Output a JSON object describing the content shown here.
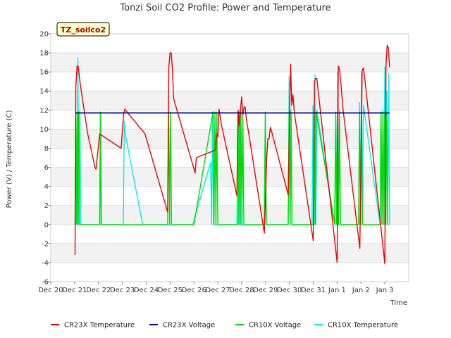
{
  "chart_data": {
    "type": "line",
    "title": "Tonzi Soil CO2 Profile: Power and Temperature",
    "xlabel": "Time",
    "ylabel": "Power (V) / Temperature (C)",
    "annotation": "TZ_soilco2",
    "xlim": [
      0,
      15
    ],
    "ylim": [
      -6,
      20
    ],
    "yticks": [
      -6,
      -4,
      -2,
      0,
      2,
      4,
      6,
      8,
      10,
      12,
      14,
      16,
      18,
      20
    ],
    "xticks": [
      {
        "value": 0,
        "label": "Dec 20"
      },
      {
        "value": 1,
        "label": "Dec 21"
      },
      {
        "value": 2,
        "label": "Dec 22"
      },
      {
        "value": 3,
        "label": "Dec 23"
      },
      {
        "value": 4,
        "label": "Dec 24"
      },
      {
        "value": 5,
        "label": "Dec 25"
      },
      {
        "value": 6,
        "label": "Dec 26"
      },
      {
        "value": 7,
        "label": "Dec 27"
      },
      {
        "value": 8,
        "label": "Dec 28"
      },
      {
        "value": 9,
        "label": "Dec 29"
      },
      {
        "value": 10,
        "label": "Dec 30"
      },
      {
        "value": 11,
        "label": "Dec 31"
      },
      {
        "value": 12,
        "label": "Jan 1"
      },
      {
        "value": 13,
        "label": "Jan 2"
      },
      {
        "value": 14,
        "label": "Jan 3"
      }
    ],
    "series": [
      {
        "name": "CR23X Temperature",
        "color": "#ee0000",
        "x": [
          1.02,
          1.05,
          1.1,
          1.15,
          1.25,
          1.55,
          1.85,
          1.9,
          2.05,
          2.95,
          3.05,
          3.1,
          3.95,
          4.9,
          4.95,
          5.0,
          5.05,
          5.1,
          5.15,
          6.05,
          6.1,
          6.4,
          6.9,
          6.95,
          7.0,
          7.05,
          7.15,
          7.8,
          7.85,
          7.9,
          7.95,
          8.0,
          8.05,
          8.1,
          8.15,
          8.2,
          8.3,
          8.95,
          9.05,
          9.1,
          9.15,
          9.2,
          9.25,
          9.95,
          10.05,
          10.1,
          10.15,
          10.2,
          10.25,
          11.0,
          11.05,
          11.1,
          11.15,
          12.0,
          12.05,
          12.1,
          12.15,
          12.25,
          12.95,
          13.05,
          13.1,
          13.15,
          14.0,
          14.05,
          14.1,
          14.15,
          14.2
        ],
        "values": [
          -3.2,
          14.5,
          16.6,
          16.6,
          14.5,
          9.5,
          6.0,
          5.8,
          9.5,
          8.0,
          11.5,
          12.1,
          9.5,
          1.3,
          16.5,
          18.0,
          18.0,
          16.2,
          13.2,
          5.4,
          7.0,
          7.3,
          7.8,
          9.5,
          9.2,
          12.1,
          10.5,
          3.0,
          12.0,
          10.3,
          12.0,
          13.4,
          11.5,
          12.3,
          12.3,
          11.0,
          9.5,
          -0.9,
          7.0,
          9.0,
          9.0,
          10.2,
          9.8,
          3.1,
          16.8,
          12.5,
          13.6,
          12.0,
          11.0,
          -1.7,
          15.0,
          15.3,
          15.3,
          -4.0,
          16.6,
          16.2,
          15.0,
          12.0,
          -2.5,
          16.2,
          16.4,
          15.5,
          -4.1,
          16.8,
          18.8,
          18.5,
          16.5
        ]
      },
      {
        "name": "CR23X Voltage",
        "color": "#0000aa",
        "x": [
          1.02,
          14.2
        ],
        "values": [
          11.7,
          11.7
        ]
      },
      {
        "name": "CR10X Voltage",
        "color": "#00dd00",
        "x": [
          1.02,
          1.05,
          1.08,
          1.11,
          1.14,
          1.17,
          1.2,
          1.23,
          2.05,
          2.08,
          2.11,
          2.14,
          3.04,
          3.07,
          3.9,
          4.9,
          4.94,
          4.98,
          5.02,
          5.06,
          5.1,
          6.0,
          6.8,
          6.84,
          6.88,
          6.92,
          6.96,
          7.0,
          7.04,
          7.85,
          7.89,
          7.93,
          7.97,
          8.01,
          8.05,
          8.09,
          8.95,
          8.99,
          9.03,
          9.95,
          9.99,
          10.03,
          10.07,
          10.11,
          11.0,
          11.04,
          11.08,
          11.12,
          11.9,
          11.94,
          11.98,
          12.02,
          12.06,
          12.1,
          12.14,
          12.9,
          12.94,
          12.98,
          13.02,
          13.06,
          13.8,
          13.84,
          13.88,
          13.92,
          13.96,
          14.0,
          14.04,
          14.08,
          14.12,
          14.16
        ],
        "values": [
          0,
          11.8,
          0,
          11.8,
          0,
          11.8,
          0,
          0,
          0,
          11.8,
          0,
          0,
          0,
          0,
          0,
          0,
          11.8,
          0,
          11.8,
          0,
          0,
          0,
          11.8,
          0,
          11.8,
          0,
          11.8,
          0,
          0,
          0,
          11.8,
          0,
          11.8,
          0,
          11.8,
          0,
          0,
          11.8,
          0,
          0,
          11.8,
          0,
          11.8,
          0,
          0,
          11.8,
          0,
          11.8,
          0,
          11.8,
          0,
          11.8,
          0,
          11.8,
          0,
          0,
          11.8,
          0,
          11.8,
          0,
          0,
          11.8,
          0,
          11.8,
          0,
          11.8,
          0,
          11.8,
          0,
          0
        ]
      },
      {
        "name": "CR10X Temperature",
        "color": "#00eeee",
        "x": [
          1.02,
          1.06,
          1.1,
          1.14,
          1.18,
          1.22,
          1.26,
          1.3,
          2.05,
          2.09,
          2.13,
          3.04,
          3.08,
          3.12,
          3.85,
          5.95,
          6.7,
          6.74,
          6.78,
          6.82,
          6.86,
          7.8,
          7.84,
          7.88,
          7.92,
          7.96,
          8.95,
          8.99,
          9.03,
          9.07,
          9.95,
          9.99,
          10.03,
          10.07,
          10.11,
          10.95,
          10.99,
          11.03,
          11.07,
          11.11,
          11.15,
          11.9,
          11.94,
          11.98,
          12.02,
          12.06,
          12.1,
          12.14,
          12.9,
          12.94,
          12.98,
          13.02,
          13.06,
          13.1,
          13.8,
          13.84,
          13.88,
          13.92,
          13.96,
          14.0,
          14.04,
          14.08,
          14.12,
          14.16,
          14.2
        ],
        "values": [
          0,
          8.0,
          0,
          17.5,
          0,
          12.0,
          0,
          0,
          0,
          11.5,
          0,
          0,
          10.8,
          9.5,
          0,
          0,
          6.5,
          0,
          11.8,
          0,
          0,
          0,
          11.8,
          0,
          11.5,
          0,
          0,
          11.8,
          0,
          0,
          0,
          15.5,
          0,
          12.0,
          0,
          0,
          12.5,
          0,
          15.7,
          0,
          12.0,
          0,
          11.5,
          0,
          16.0,
          0,
          12.0,
          0,
          0,
          12.8,
          0,
          16.0,
          0,
          12.5,
          0,
          11.5,
          0,
          12.0,
          0,
          16.5,
          0,
          14.0,
          0,
          15.8,
          0
        ]
      }
    ],
    "legend": {
      "position": "bottom"
    }
  }
}
